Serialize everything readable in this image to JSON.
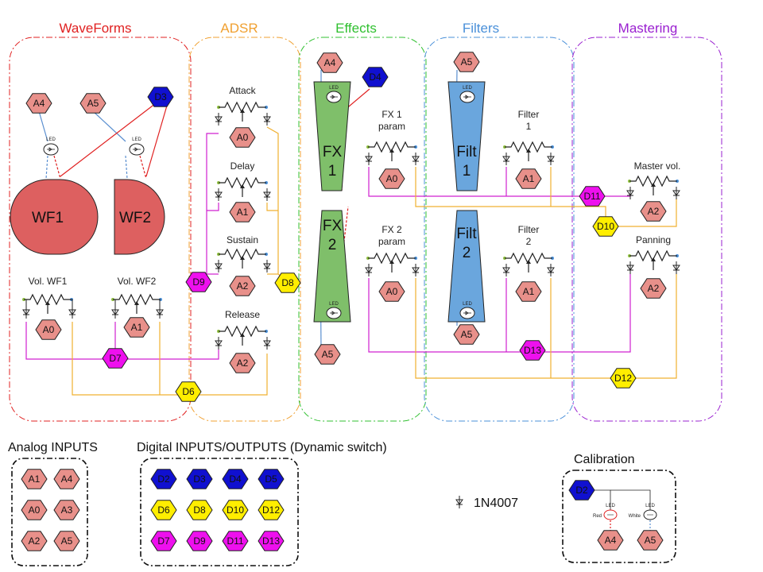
{
  "sections": {
    "waveforms": {
      "title": "WaveForms",
      "color": "#e02020"
    },
    "adsr": {
      "title": "ADSR",
      "color": "#f0a030"
    },
    "effects": {
      "title": "Effects",
      "color": "#30c030"
    },
    "filters": {
      "title": "Filters",
      "color": "#4a90d9"
    },
    "mastering": {
      "title": "Mastering",
      "color": "#9a20d0"
    }
  },
  "colors": {
    "analog": "#e8908a",
    "digital_blue": "#1010d0",
    "digital_yellow": "#ffee00",
    "digital_magenta": "#ee10ee",
    "wf_fill": "#dd6060",
    "fx_fill": "#7fbf6a",
    "filt_fill": "#6aa6dd",
    "wire_blue": "#5a8fd0",
    "wire_red": "#e02020",
    "wire_magenta": "#d020d0",
    "wire_orange": "#f0b030"
  },
  "waveforms": {
    "wf1": "WF1",
    "wf2": "WF2",
    "vol_wf1": "Vol. WF1",
    "vol_wf2": "Vol. WF2",
    "pins": {
      "a4": "A4",
      "a5": "A5",
      "d3": "D3",
      "a0": "A0",
      "a1": "A1"
    }
  },
  "adsr": {
    "attack": "Attack",
    "delay": "Delay",
    "sustain": "Sustain",
    "release": "Release",
    "pins": {
      "a0": "A0",
      "a1": "A1",
      "a2": "A2",
      "a2b": "A2"
    }
  },
  "effects": {
    "fx1": [
      "FX",
      "1"
    ],
    "fx2": [
      "FX",
      "2"
    ],
    "fx1_param": [
      "FX 1",
      "param"
    ],
    "fx2_param": [
      "FX 2",
      "param"
    ],
    "pins": {
      "a4": "A4",
      "d4": "D4",
      "a5": "A5",
      "a0": "A0",
      "a0b": "A0"
    }
  },
  "filters": {
    "filt1": [
      "Filt",
      "1"
    ],
    "filt2": [
      "Filt",
      "2"
    ],
    "filter1": [
      "Filter",
      "1"
    ],
    "filter2": [
      "Filter",
      "2"
    ],
    "pins": {
      "a5": "A5",
      "a5b": "A5",
      "a1": "A1",
      "a1b": "A1"
    }
  },
  "mastering": {
    "master_vol": "Master vol.",
    "panning": "Panning",
    "pins": {
      "a2": "A2",
      "a2b": "A2"
    }
  },
  "switches": {
    "d6": "D6",
    "d7": "D7",
    "d8": "D8",
    "d9": "D9",
    "d10": "D10",
    "d11": "D11",
    "d12": "D12",
    "d13": "D13"
  },
  "led": "LED",
  "legend": {
    "analog_title": "Analog INPUTS",
    "analog_pins": [
      "A1",
      "A4",
      "A0",
      "A3",
      "A2",
      "A5"
    ],
    "digital_title": "Digital INPUTS/OUTPUTS (Dynamic switch)",
    "digital_blue": [
      "D2",
      "D3",
      "D4",
      "D5"
    ],
    "digital_yellow": [
      "D6",
      "D8",
      "D10",
      "D12"
    ],
    "digital_magenta": [
      "D7",
      "D9",
      "D11",
      "D13"
    ],
    "diode_label": "1N4007",
    "calibration_title": "Calibration",
    "cal_pin": "D2",
    "cal_led_red": "Red",
    "cal_led_white": "White",
    "cal_a4": "A4",
    "cal_a5": "A5"
  }
}
